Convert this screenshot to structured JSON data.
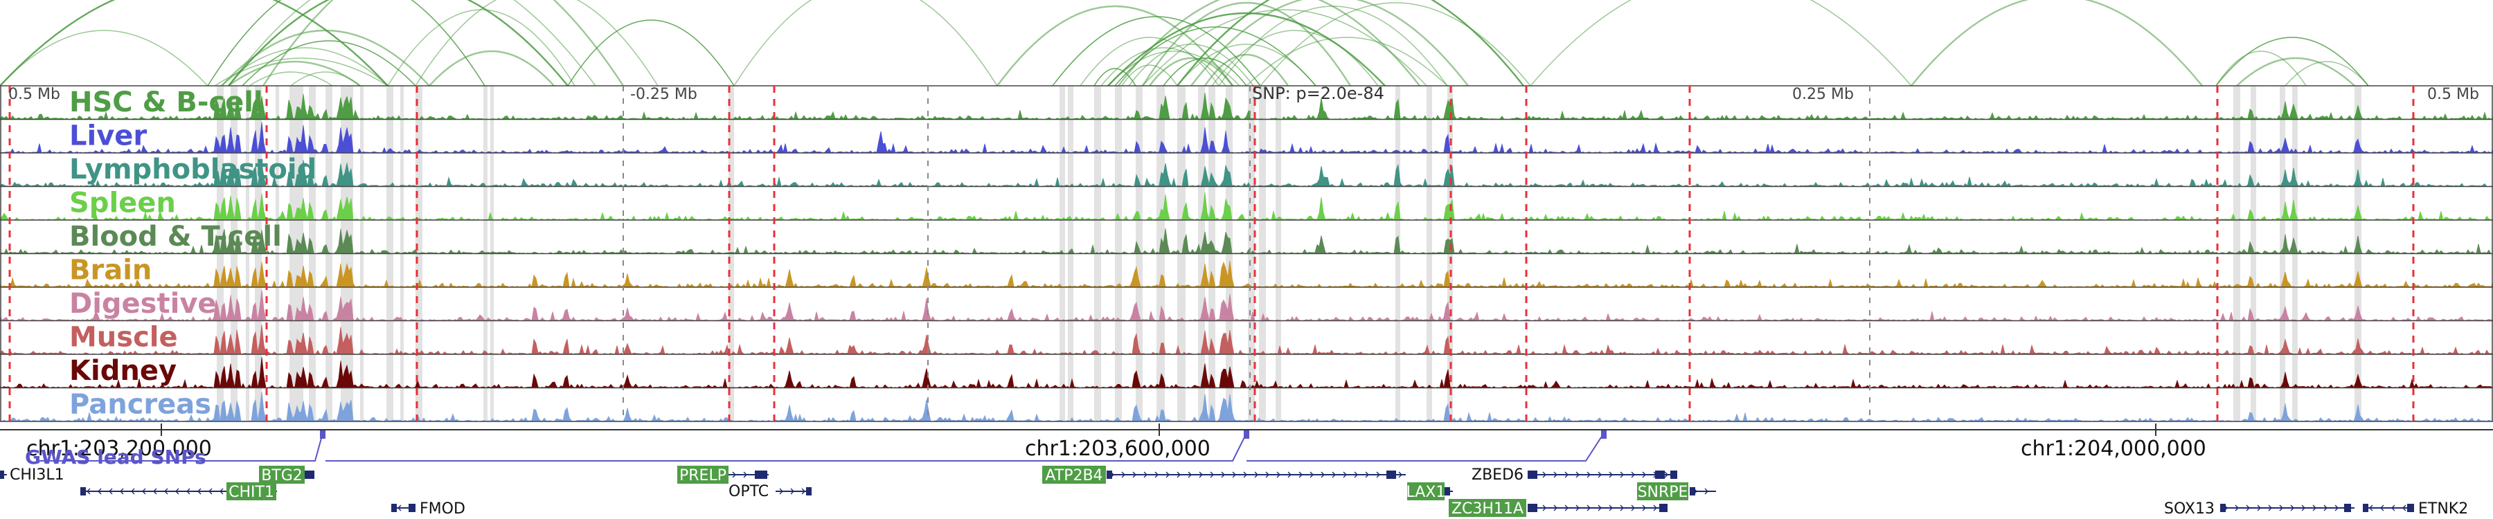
{
  "coords": {
    "left": "0.5 Mb",
    "minus": "-0.25 Mb",
    "snp": "SNP: p=2.0e-84",
    "plus": "0.25 Mb",
    "right": "0.5 Mb"
  },
  "positions": [
    "chr1:203,200,000",
    "chr1:203,600,000",
    "chr1:204,000,000"
  ],
  "gwas_label": "GWAS lead SNPs",
  "tracks": [
    {
      "name": "HSC & B-cell",
      "color": "#4f9d45"
    },
    {
      "name": "Liver",
      "color": "#4b4fd6"
    },
    {
      "name": "Lymphoblastoid",
      "color": "#3f9486"
    },
    {
      "name": "Spleen",
      "color": "#6bcf4a"
    },
    {
      "name": "Blood & T-cell",
      "color": "#5b8a55"
    },
    {
      "name": "Brain",
      "color": "#c99624"
    },
    {
      "name": "Digestive",
      "color": "#c983a2"
    },
    {
      "name": "Muscle",
      "color": "#c45f5f"
    },
    {
      "name": "Kidney",
      "color": "#6a0808"
    },
    {
      "name": "Pancreas",
      "color": "#7ea3dc"
    }
  ],
  "genes": {
    "chi3l1": "CHI3L1",
    "chit1": "CHIT1",
    "btg2": "BTG2",
    "fmod": "FMOD",
    "prelp": "PRELP",
    "optc": "OPTC",
    "atp2b4": "ATP2B4",
    "lax1": "LAX1",
    "zbed6": "ZBED6",
    "zc3h11a": "ZC3H11A",
    "snrpe": "SNRPE",
    "sox13": "SOX13",
    "etnk2": "ETNK2"
  },
  "colors": {
    "arc": "#4a9a3f",
    "gene_box": "#4f9d45",
    "gene_line": "#1f2a70",
    "snp_line": "#e8303a",
    "highlight": "#d8d8d8"
  }
}
